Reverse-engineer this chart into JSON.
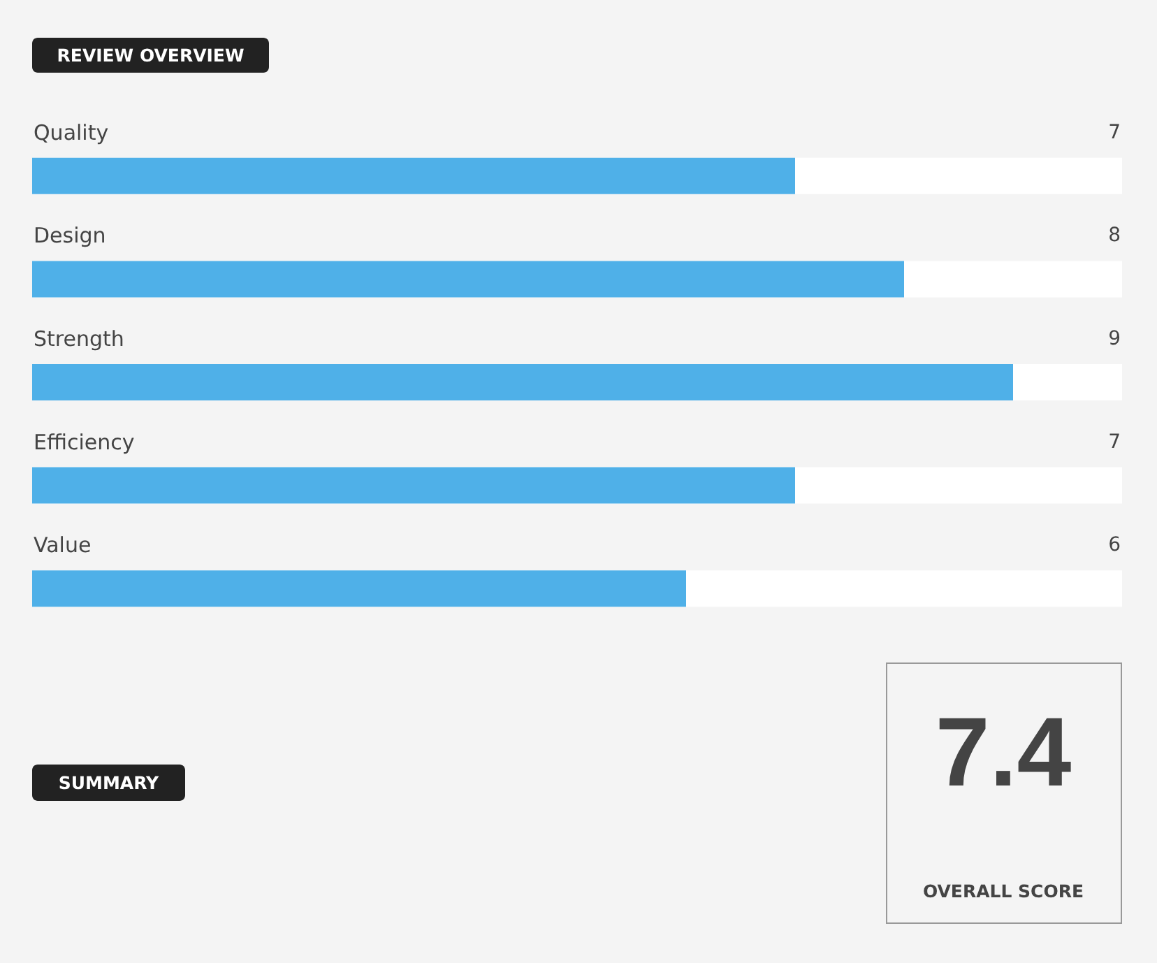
{
  "chart_data": {
    "type": "bar",
    "orientation": "horizontal",
    "title": "REVIEW OVERVIEW",
    "categories": [
      "Quality",
      "Design",
      "Strength",
      "Efficiency",
      "Value"
    ],
    "values": [
      7,
      8,
      9,
      7,
      6
    ],
    "color": "#4fb0e8",
    "xlim": [
      0,
      10
    ],
    "data_labels": true,
    "tick_labels": "y",
    "annotations": [
      "SUMMARY",
      "7.4",
      "OVERALL SCORE"
    ]
  }
}
